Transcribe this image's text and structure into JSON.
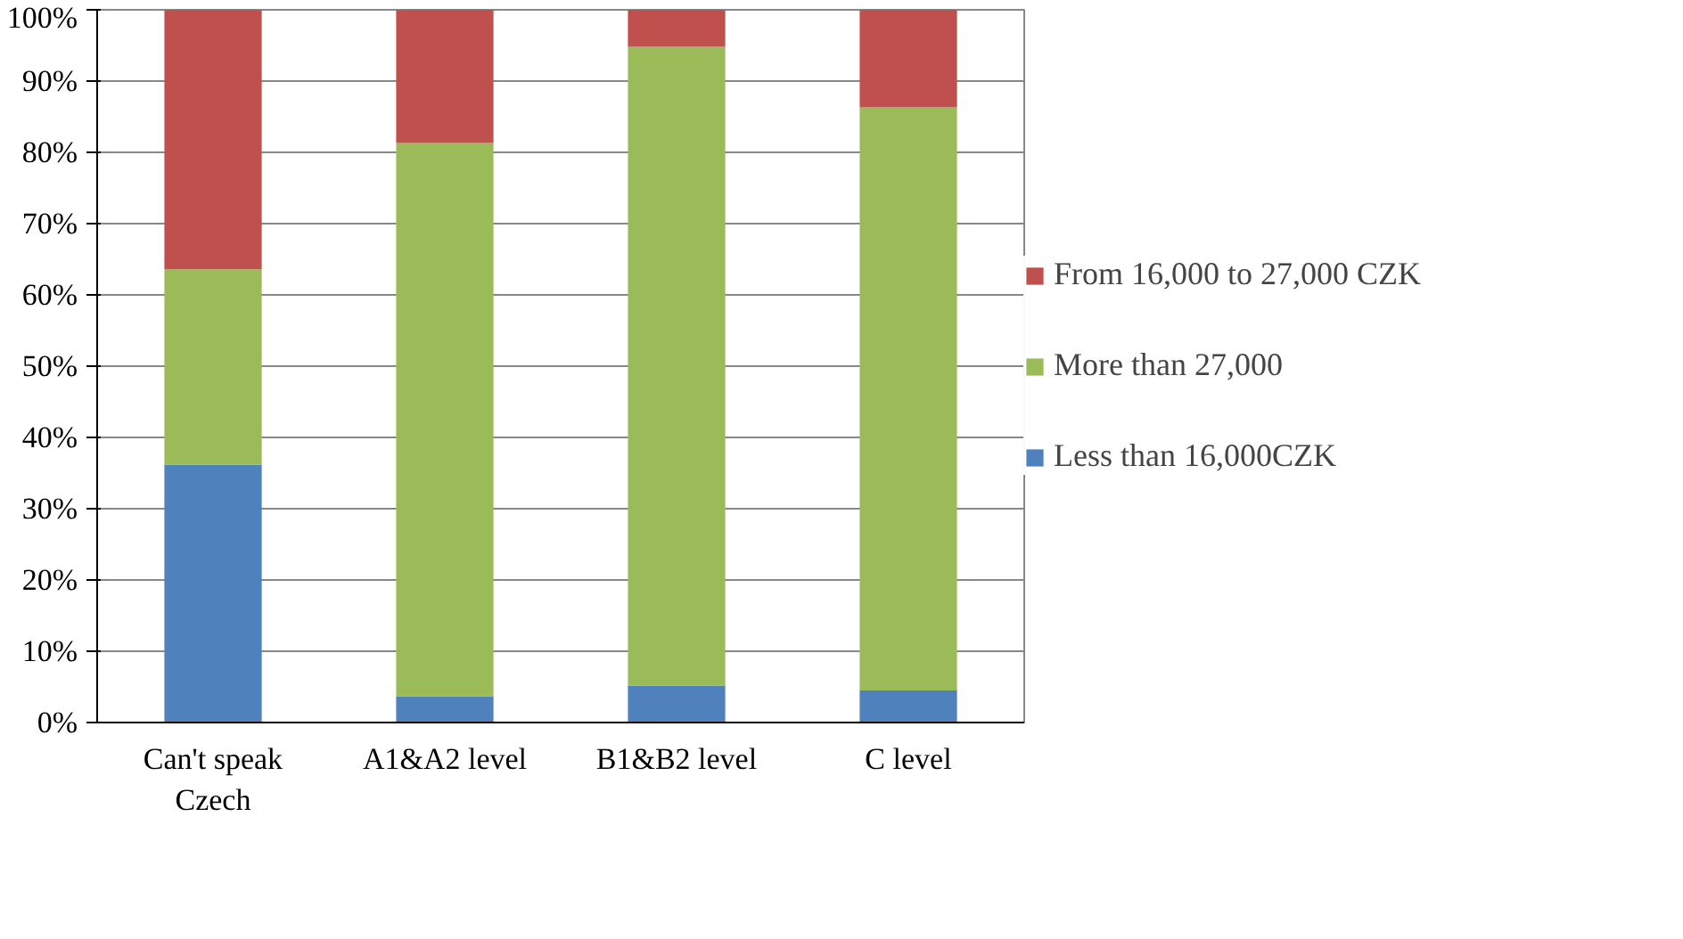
{
  "chart_data": {
    "type": "bar",
    "stacked": true,
    "categories": [
      "Can't speak Czech",
      "A1&A2 level",
      "B1&B2 level",
      "C level"
    ],
    "series": [
      {
        "name": "Less than 16,000CZK",
        "color": "#4f81bd",
        "values": [
          36.2,
          3.7,
          5.2,
          4.5
        ]
      },
      {
        "name": "More than 27,000",
        "color": "#9bbb59",
        "values": [
          27.4,
          77.6,
          89.6,
          81.8
        ]
      },
      {
        "name": "From 16,000 to 27,000 CZK",
        "color": "#c0504d",
        "values": [
          36.4,
          18.7,
          5.2,
          13.7
        ]
      }
    ],
    "ylim": [
      0,
      100
    ],
    "yticks": [
      {
        "value": 0,
        "label": "0%"
      },
      {
        "value": 10,
        "label": "10%"
      },
      {
        "value": 20,
        "label": "20%"
      },
      {
        "value": 30,
        "label": "30%"
      },
      {
        "value": 40,
        "label": "40%"
      },
      {
        "value": 50,
        "label": "50%"
      },
      {
        "value": 60,
        "label": "60%"
      },
      {
        "value": 70,
        "label": "70%"
      },
      {
        "value": 80,
        "label": "80%"
      },
      {
        "value": 90,
        "label": "90%"
      },
      {
        "value": 100,
        "label": "100%"
      }
    ],
    "grid": "y",
    "legend": "right"
  }
}
